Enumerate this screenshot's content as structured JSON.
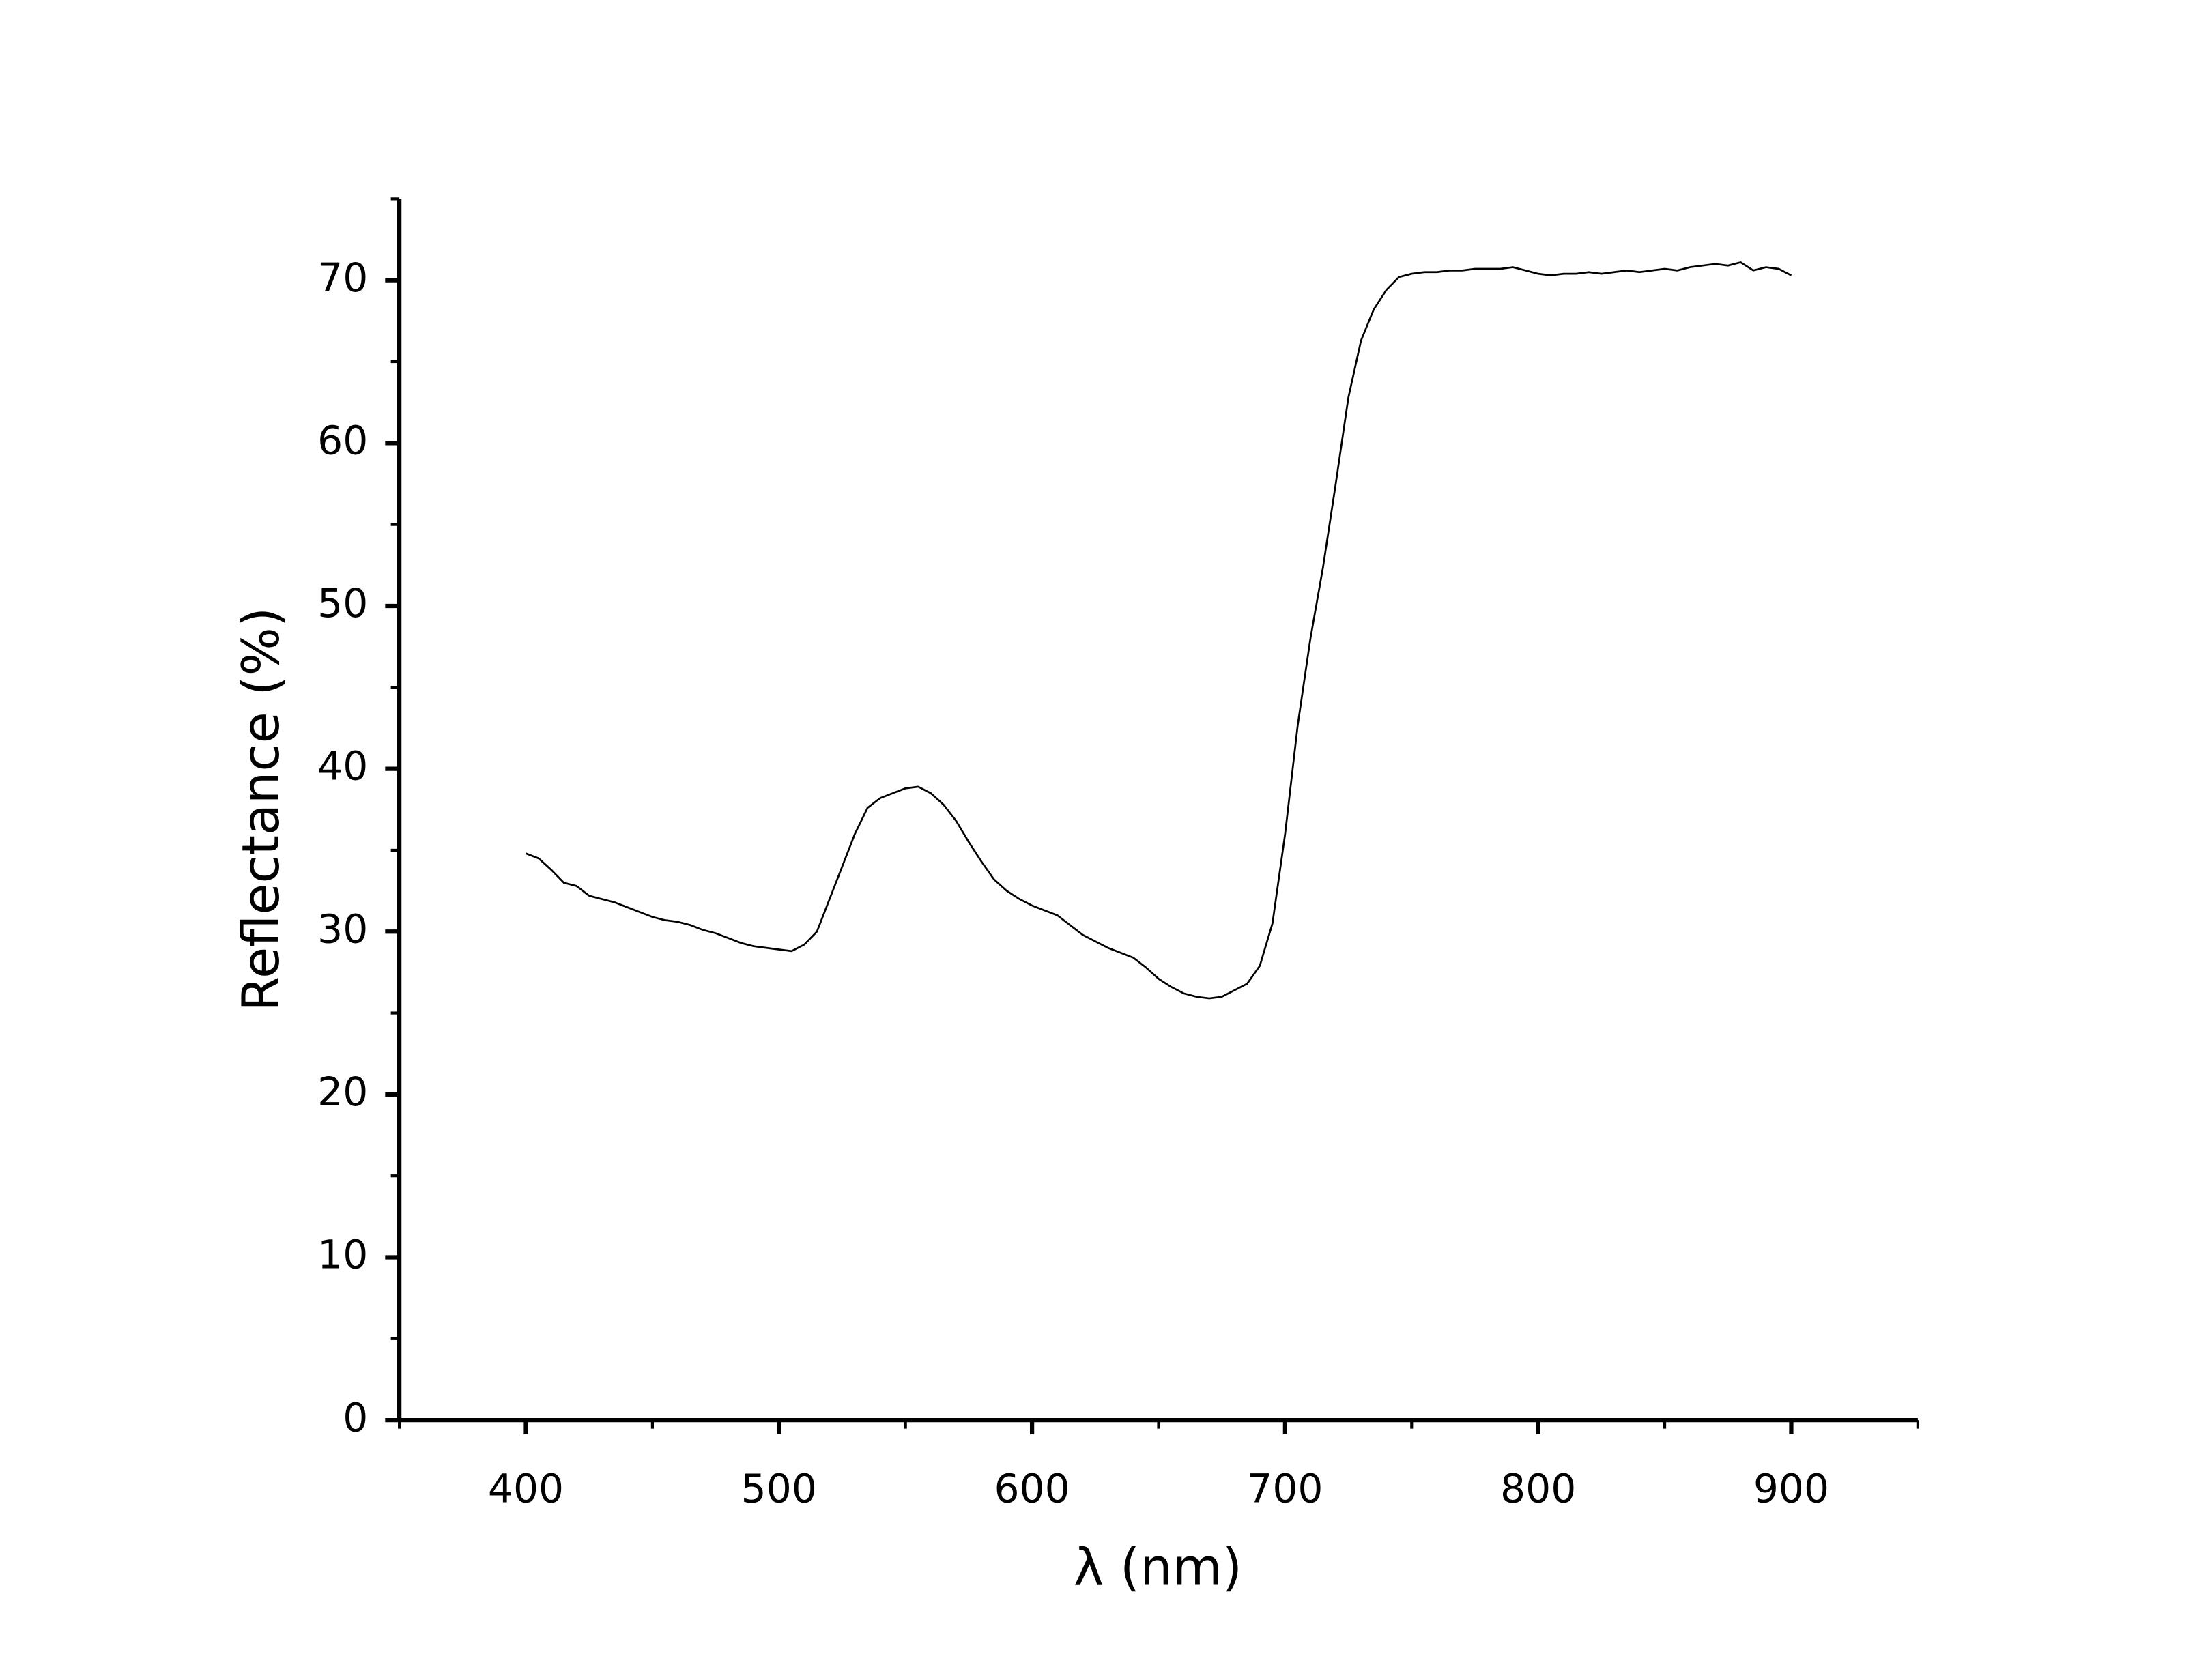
{
  "chart_data": {
    "type": "line",
    "x_label": "λ (nm)",
    "y_label": "Reflectance (%)",
    "x": [
      400,
      405,
      410,
      415,
      420,
      425,
      430,
      435,
      440,
      445,
      450,
      455,
      460,
      465,
      470,
      475,
      480,
      485,
      490,
      495,
      500,
      505,
      510,
      515,
      520,
      525,
      530,
      535,
      540,
      545,
      550,
      555,
      560,
      565,
      570,
      575,
      580,
      585,
      590,
      595,
      600,
      605,
      610,
      615,
      620,
      625,
      630,
      635,
      640,
      645,
      650,
      655,
      660,
      665,
      670,
      675,
      680,
      685,
      690,
      695,
      700,
      705,
      710,
      715,
      720,
      725,
      730,
      735,
      740,
      745,
      750,
      755,
      760,
      765,
      770,
      775,
      780,
      785,
      790,
      795,
      800,
      805,
      810,
      815,
      820,
      825,
      830,
      835,
      840,
      845,
      850,
      855,
      860,
      865,
      870,
      875,
      880,
      885,
      890,
      895,
      900
    ],
    "series": [
      {
        "color": "#000000",
        "values": [
          34.8,
          34.5,
          33.8,
          33.0,
          32.8,
          32.2,
          32.0,
          31.8,
          31.5,
          31.2,
          30.9,
          30.7,
          30.6,
          30.4,
          30.1,
          29.9,
          29.6,
          29.3,
          29.1,
          29.0,
          28.9,
          28.8,
          29.2,
          30.0,
          32.0,
          34.0,
          36.0,
          37.6,
          38.2,
          38.5,
          38.8,
          38.9,
          38.5,
          37.8,
          36.8,
          35.5,
          34.3,
          33.2,
          32.5,
          32.0,
          31.6,
          31.3,
          31.0,
          30.4,
          29.8,
          29.4,
          29.0,
          28.7,
          28.4,
          27.8,
          27.1,
          26.6,
          26.2,
          26.0,
          25.9,
          26.0,
          26.4,
          26.8,
          27.9,
          30.5,
          36.0,
          42.7,
          48.0,
          52.4,
          57.5,
          62.8,
          66.3,
          68.2,
          69.4,
          70.2,
          70.4,
          70.5,
          70.5,
          70.6,
          70.6,
          70.7,
          70.7,
          70.7,
          70.8,
          70.6,
          70.4,
          70.3,
          70.4,
          70.4,
          70.5,
          70.4,
          70.5,
          70.6,
          70.5,
          70.6,
          70.7,
          70.6,
          70.8,
          70.9,
          71.0,
          70.9,
          71.1,
          70.6,
          70.8,
          70.7,
          70.3
        ]
      }
    ],
    "xlim": [
      350,
      950
    ],
    "ylim": [
      0,
      75
    ],
    "xticks": [
      400,
      500,
      600,
      700,
      800,
      900
    ],
    "yticks": [
      0,
      10,
      20,
      30,
      40,
      50,
      60,
      70
    ],
    "xminorticks": [
      350,
      450,
      550,
      650,
      750,
      850,
      950
    ],
    "yminorticks": [
      5,
      15,
      25,
      35,
      45,
      55,
      65,
      75
    ]
  }
}
